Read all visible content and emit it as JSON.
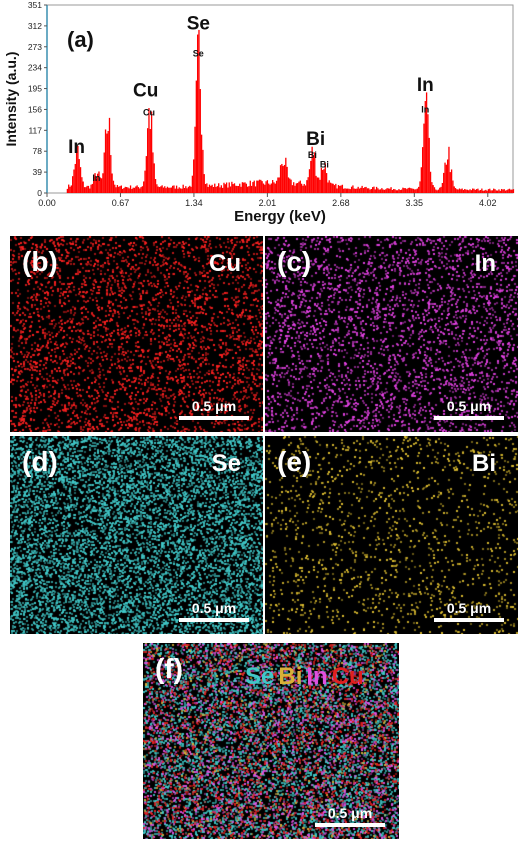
{
  "chart_data": {
    "type": "bar",
    "label": "(a)",
    "xlabel": "Energy (keV)",
    "ylabel": "Intensity (a.u.)",
    "xlim": [
      0,
      4.25
    ],
    "ylim": [
      0,
      351
    ],
    "x_ticks": [
      "0.00",
      "0.67",
      "1.34",
      "2.01",
      "2.68",
      "3.35",
      "4.02"
    ],
    "x_tick_values": [
      0,
      0.67,
      1.34,
      2.01,
      2.68,
      3.35,
      4.02
    ],
    "y_ticks": [
      "0",
      "39",
      "78",
      "117",
      "156",
      "195",
      "234",
      "273",
      "312",
      "351"
    ],
    "y_tick_values": [
      0,
      39,
      78,
      117,
      156,
      195,
      234,
      273,
      312,
      351
    ],
    "bar_color": "#ff0000",
    "peaks": [
      {
        "energy": 0.27,
        "intensity": 65
      },
      {
        "energy": 0.45,
        "intensity": 25
      },
      {
        "energy": 0.55,
        "intensity": 120
      },
      {
        "energy": 0.93,
        "intensity": 140
      },
      {
        "energy": 1.38,
        "intensity": 245
      },
      {
        "energy": 2.15,
        "intensity": 45
      },
      {
        "energy": 2.42,
        "intensity": 60
      },
      {
        "energy": 2.52,
        "intensity": 40
      },
      {
        "energy": 3.45,
        "intensity": 145
      },
      {
        "energy": 3.65,
        "intensity": 70
      }
    ],
    "annotations": [
      {
        "text": "In",
        "size": "large",
        "energy": 0.27,
        "intensity": 75
      },
      {
        "text": "In",
        "size": "small",
        "energy": 0.45,
        "intensity": 22
      },
      {
        "text": "Cu",
        "size": "large",
        "energy": 0.9,
        "intensity": 180
      },
      {
        "text": "Cu",
        "size": "small",
        "energy": 0.93,
        "intensity": 145
      },
      {
        "text": "Se",
        "size": "large",
        "energy": 1.38,
        "intensity": 305
      },
      {
        "text": "Se",
        "size": "small",
        "energy": 1.38,
        "intensity": 255
      },
      {
        "text": "Bi",
        "size": "large",
        "energy": 2.45,
        "intensity": 90
      },
      {
        "text": "Bi",
        "size": "small",
        "energy": 2.42,
        "intensity": 65
      },
      {
        "text": "Bi",
        "size": "small",
        "energy": 2.53,
        "intensity": 48
      },
      {
        "text": "In",
        "size": "large",
        "energy": 3.45,
        "intensity": 190
      },
      {
        "text": "In",
        "size": "small",
        "energy": 3.45,
        "intensity": 150
      }
    ]
  },
  "maps": [
    {
      "id": "b",
      "label": "(b)",
      "element": "Cu",
      "color": "#ff2020",
      "density": 0.55,
      "scale": "0.5 μm"
    },
    {
      "id": "c",
      "label": "(c)",
      "element": "In",
      "color": "#e040e0",
      "density": 0.5,
      "scale": "0.5 μm"
    },
    {
      "id": "d",
      "label": "(d)",
      "element": "Se",
      "color": "#40c8c8",
      "density": 1.2,
      "scale": "0.5 μm"
    },
    {
      "id": "e",
      "label": "(e)",
      "element": "Bi",
      "color": "#e0c030",
      "density": 0.22,
      "scale": "0.5 μm"
    }
  ],
  "overlay": {
    "label": "(f)",
    "scale": "0.5 μm",
    "legend": [
      {
        "element": "Se",
        "color": "#40c8c8"
      },
      {
        "element": "Bi",
        "color": "#d8b038"
      },
      {
        "element": "In",
        "color": "#e050e0"
      },
      {
        "element": "Cu",
        "color": "#e02020"
      }
    ]
  }
}
